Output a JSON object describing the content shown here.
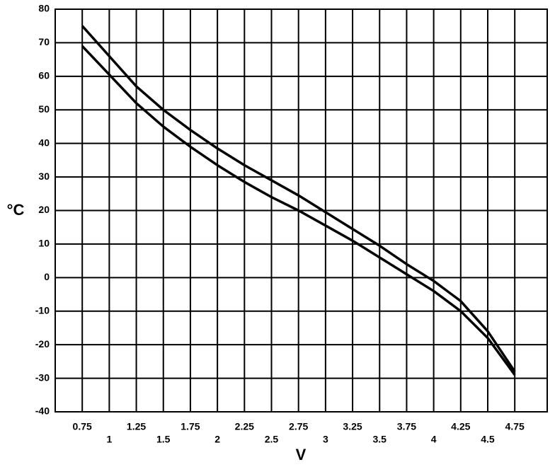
{
  "chart_data": {
    "type": "line",
    "x_label": "V",
    "y_label": "°C",
    "x": [
      0.75,
      1,
      1.25,
      1.5,
      1.75,
      2,
      2.25,
      2.5,
      2.75,
      3,
      3.25,
      3.5,
      3.75,
      4,
      4.25,
      4.5,
      4.75
    ],
    "series": [
      {
        "color": "#000000",
        "values": [
          75,
          66,
          57,
          50,
          44,
          38.5,
          33.5,
          29,
          24.5,
          19.5,
          14.5,
          9.5,
          4,
          -1,
          -7,
          -16,
          -28
        ]
      },
      {
        "color": "#000000",
        "values": [
          69,
          60.5,
          52,
          45,
          39,
          33.5,
          28.5,
          24,
          20,
          15.5,
          11,
          6,
          1,
          -4,
          -10,
          -18,
          -29
        ]
      }
    ],
    "xlim": [
      0.5,
      5.05
    ],
    "xticks": [
      0.75,
      1,
      1.25,
      1.5,
      1.75,
      2,
      2.25,
      2.5,
      2.75,
      3,
      3.25,
      3.5,
      3.75,
      4,
      4.25,
      4.5,
      4.75
    ],
    "ylim": [
      -40,
      80
    ],
    "yticks": [
      -40,
      -30,
      -20,
      -10,
      0,
      10,
      20,
      30,
      40,
      50,
      60,
      70,
      80
    ],
    "grid": true
  }
}
